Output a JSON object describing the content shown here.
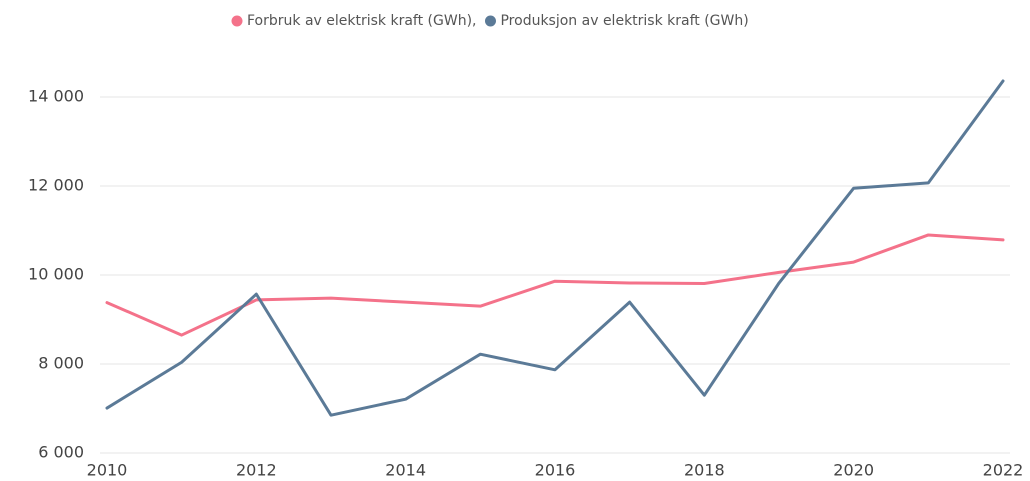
{
  "chart_data": {
    "type": "line",
    "x": [
      2010,
      2011,
      2012,
      2013,
      2014,
      2015,
      2016,
      2017,
      2018,
      2019,
      2020,
      2021,
      2022
    ],
    "series": [
      {
        "name": "Forbruk av elektrisk kraft (GWh),",
        "color": "#f4728a",
        "values": [
          9380,
          8650,
          9440,
          9480,
          9390,
          9300,
          9860,
          9820,
          9810,
          10060,
          10290,
          10900,
          10790
        ]
      },
      {
        "name": "Produksjon av elektrisk kraft (GWh)",
        "color": "#5b7a97",
        "values": [
          7010,
          8040,
          9570,
          6850,
          7210,
          8220,
          7870,
          9390,
          7300,
          9820,
          11950,
          12070,
          14360
        ]
      }
    ],
    "xlim": [
      2010,
      2022
    ],
    "xticks": [
      2010,
      2012,
      2014,
      2016,
      2018,
      2020,
      2022
    ],
    "ylim": [
      6000,
      15000
    ],
    "yticks": [
      {
        "value": 6000,
        "label": "6 000"
      },
      {
        "value": 8000,
        "label": "8 000"
      },
      {
        "value": 10000,
        "label": "10 000"
      },
      {
        "value": 12000,
        "label": "12 000"
      },
      {
        "value": 14000,
        "label": "14 000"
      }
    ],
    "grid": true,
    "legend": "top"
  }
}
